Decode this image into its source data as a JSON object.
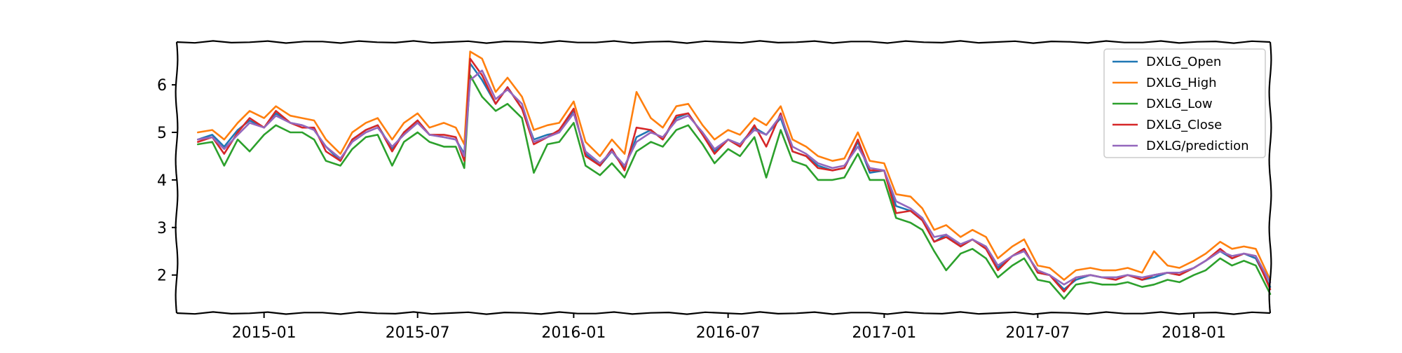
{
  "chart_data": {
    "type": "line",
    "title": "",
    "xlabel": "",
    "ylabel": "",
    "x_axis": {
      "type": "date",
      "range": [
        "2014-09-20",
        "2018-04-01"
      ],
      "ticks": [
        "2015-01-01",
        "2015-07-01",
        "2016-01-01",
        "2016-07-01",
        "2017-01-01",
        "2017-07-01",
        "2018-01-01"
      ],
      "tick_labels": [
        "2015-01",
        "2015-07",
        "2016-01",
        "2016-07",
        "2017-01",
        "2017-07",
        "2018-01"
      ]
    },
    "y_axis": {
      "range": [
        1.2,
        6.9
      ],
      "ticks": [
        2,
        3,
        4,
        5,
        6
      ],
      "tick_labels": [
        "2",
        "3",
        "4",
        "5",
        "6"
      ]
    },
    "grid": false,
    "legend_position": "top-right",
    "style": "xkcd-sketch",
    "x": [
      "2014-10-15",
      "2014-11-01",
      "2014-11-15",
      "2014-12-01",
      "2014-12-15",
      "2015-01-01",
      "2015-01-15",
      "2015-02-01",
      "2015-02-15",
      "2015-03-01",
      "2015-03-15",
      "2015-04-01",
      "2015-04-15",
      "2015-05-01",
      "2015-05-15",
      "2015-06-01",
      "2015-06-15",
      "2015-07-01",
      "2015-07-15",
      "2015-08-01",
      "2015-08-15",
      "2015-08-25",
      "2015-09-01",
      "2015-09-15",
      "2015-10-01",
      "2015-10-15",
      "2015-11-01",
      "2015-11-15",
      "2015-12-01",
      "2015-12-15",
      "2016-01-01",
      "2016-01-15",
      "2016-02-01",
      "2016-02-15",
      "2016-03-01",
      "2016-03-15",
      "2016-04-01",
      "2016-04-15",
      "2016-05-01",
      "2016-05-15",
      "2016-06-01",
      "2016-06-15",
      "2016-07-01",
      "2016-07-15",
      "2016-08-01",
      "2016-08-15",
      "2016-09-01",
      "2016-09-15",
      "2016-10-01",
      "2016-10-15",
      "2016-11-01",
      "2016-11-15",
      "2016-12-01",
      "2016-12-15",
      "2017-01-01",
      "2017-01-15",
      "2017-02-01",
      "2017-02-15",
      "2017-03-01",
      "2017-03-15",
      "2017-04-01",
      "2017-04-15",
      "2017-05-01",
      "2017-05-15",
      "2017-06-01",
      "2017-06-15",
      "2017-07-01",
      "2017-07-15",
      "2017-08-01",
      "2017-08-15",
      "2017-09-01",
      "2017-09-15",
      "2017-10-01",
      "2017-10-15",
      "2017-11-01",
      "2017-11-15",
      "2017-12-01",
      "2017-12-15",
      "2018-01-01",
      "2018-01-15",
      "2018-02-01",
      "2018-02-15",
      "2018-03-01",
      "2018-03-15",
      "2018-04-01"
    ],
    "series": [
      {
        "name": "DXLG_Open",
        "color": "#1f77b4",
        "values": [
          4.85,
          4.95,
          4.7,
          5.05,
          5.25,
          5.1,
          5.4,
          5.2,
          5.15,
          5.05,
          4.7,
          4.4,
          4.85,
          5.05,
          5.15,
          4.65,
          5.0,
          5.25,
          4.95,
          4.9,
          4.85,
          4.55,
          6.45,
          6.1,
          5.6,
          5.95,
          5.5,
          4.85,
          4.95,
          5.0,
          5.45,
          4.55,
          4.3,
          4.6,
          4.25,
          4.9,
          5.05,
          4.85,
          5.3,
          5.4,
          4.95,
          4.6,
          4.85,
          4.75,
          5.1,
          4.95,
          5.3,
          4.6,
          4.5,
          4.3,
          4.2,
          4.25,
          4.8,
          4.15,
          4.2,
          3.45,
          3.35,
          3.15,
          2.7,
          2.85,
          2.6,
          2.75,
          2.55,
          2.15,
          2.4,
          2.55,
          2.05,
          2.0,
          1.7,
          1.9,
          2.0,
          1.95,
          1.95,
          2.0,
          1.9,
          1.95,
          2.05,
          2.0,
          2.15,
          2.3,
          2.5,
          2.35,
          2.45,
          2.35,
          1.75
        ]
      },
      {
        "name": "DXLG_High",
        "color": "#ff7f0e",
        "values": [
          5.0,
          5.05,
          4.85,
          5.2,
          5.45,
          5.3,
          5.55,
          5.35,
          5.3,
          5.25,
          4.85,
          4.55,
          5.0,
          5.2,
          5.3,
          4.85,
          5.2,
          5.4,
          5.1,
          5.2,
          5.1,
          4.75,
          6.7,
          6.55,
          5.85,
          6.15,
          5.75,
          5.05,
          5.15,
          5.2,
          5.65,
          4.8,
          4.5,
          4.85,
          4.55,
          5.85,
          5.3,
          5.1,
          5.55,
          5.6,
          5.15,
          4.85,
          5.05,
          4.95,
          5.3,
          5.15,
          5.55,
          4.85,
          4.7,
          4.5,
          4.4,
          4.45,
          5.0,
          4.4,
          4.35,
          3.7,
          3.65,
          3.4,
          2.95,
          3.05,
          2.8,
          2.95,
          2.8,
          2.35,
          2.6,
          2.75,
          2.2,
          2.15,
          1.9,
          2.1,
          2.15,
          2.1,
          2.1,
          2.15,
          2.05,
          2.5,
          2.2,
          2.15,
          2.3,
          2.45,
          2.7,
          2.55,
          2.6,
          2.55,
          1.9
        ]
      },
      {
        "name": "DXLG_Low",
        "color": "#2ca02c",
        "values": [
          4.75,
          4.8,
          4.3,
          4.85,
          4.6,
          4.95,
          5.15,
          5.0,
          5.0,
          4.85,
          4.4,
          4.3,
          4.65,
          4.9,
          4.95,
          4.3,
          4.8,
          5.0,
          4.8,
          4.7,
          4.7,
          4.25,
          6.2,
          5.75,
          5.45,
          5.6,
          5.3,
          4.15,
          4.75,
          4.8,
          5.2,
          4.3,
          4.1,
          4.35,
          4.05,
          4.6,
          4.8,
          4.7,
          5.05,
          5.15,
          4.75,
          4.35,
          4.65,
          4.5,
          4.9,
          4.05,
          5.05,
          4.4,
          4.3,
          4.0,
          4.0,
          4.05,
          4.55,
          4.0,
          4.0,
          3.2,
          3.1,
          2.95,
          2.5,
          2.1,
          2.45,
          2.55,
          2.35,
          1.95,
          2.2,
          2.35,
          1.9,
          1.85,
          1.5,
          1.8,
          1.85,
          1.8,
          1.8,
          1.85,
          1.75,
          1.8,
          1.9,
          1.85,
          2.0,
          2.1,
          2.35,
          2.2,
          2.3,
          2.2,
          1.6
        ]
      },
      {
        "name": "DXLG_Close",
        "color": "#d62728",
        "values": [
          4.8,
          4.9,
          4.55,
          5.0,
          5.3,
          5.1,
          5.45,
          5.2,
          5.1,
          5.1,
          4.6,
          4.4,
          4.85,
          5.05,
          5.15,
          4.6,
          5.0,
          5.25,
          4.95,
          4.95,
          4.9,
          4.4,
          6.55,
          6.2,
          5.6,
          5.95,
          5.5,
          4.75,
          4.9,
          5.05,
          5.5,
          4.5,
          4.3,
          4.65,
          4.2,
          5.1,
          5.05,
          4.85,
          5.35,
          5.4,
          4.95,
          4.55,
          4.85,
          4.7,
          5.15,
          4.7,
          5.4,
          4.6,
          4.5,
          4.25,
          4.2,
          4.25,
          4.85,
          4.2,
          4.2,
          3.3,
          3.35,
          3.15,
          2.7,
          2.8,
          2.6,
          2.75,
          2.55,
          2.1,
          2.4,
          2.55,
          2.05,
          2.0,
          1.65,
          1.95,
          2.0,
          1.95,
          1.9,
          2.0,
          1.9,
          2.0,
          2.05,
          2.0,
          2.15,
          2.3,
          2.55,
          2.35,
          2.45,
          2.4,
          1.7
        ]
      },
      {
        "name": "DXLG/prediction",
        "color": "#9467bd",
        "values": [
          4.85,
          4.9,
          4.65,
          4.95,
          5.2,
          5.1,
          5.35,
          5.2,
          5.15,
          5.05,
          4.7,
          4.45,
          4.8,
          5.0,
          5.1,
          4.7,
          4.95,
          5.2,
          4.95,
          4.9,
          4.85,
          4.5,
          6.1,
          6.3,
          5.7,
          5.9,
          5.6,
          4.8,
          4.9,
          5.0,
          5.4,
          4.6,
          4.35,
          4.6,
          4.3,
          4.8,
          5.0,
          4.9,
          5.25,
          5.35,
          5.0,
          4.65,
          4.85,
          4.75,
          5.05,
          4.95,
          5.35,
          4.7,
          4.55,
          4.35,
          4.25,
          4.3,
          4.7,
          4.25,
          4.2,
          3.55,
          3.4,
          3.2,
          2.8,
          2.85,
          2.65,
          2.75,
          2.6,
          2.2,
          2.4,
          2.5,
          2.1,
          2.0,
          1.8,
          1.95,
          2.0,
          1.95,
          1.95,
          2.0,
          1.95,
          2.0,
          2.05,
          2.05,
          2.15,
          2.3,
          2.5,
          2.4,
          2.45,
          2.4,
          1.85
        ]
      }
    ]
  }
}
